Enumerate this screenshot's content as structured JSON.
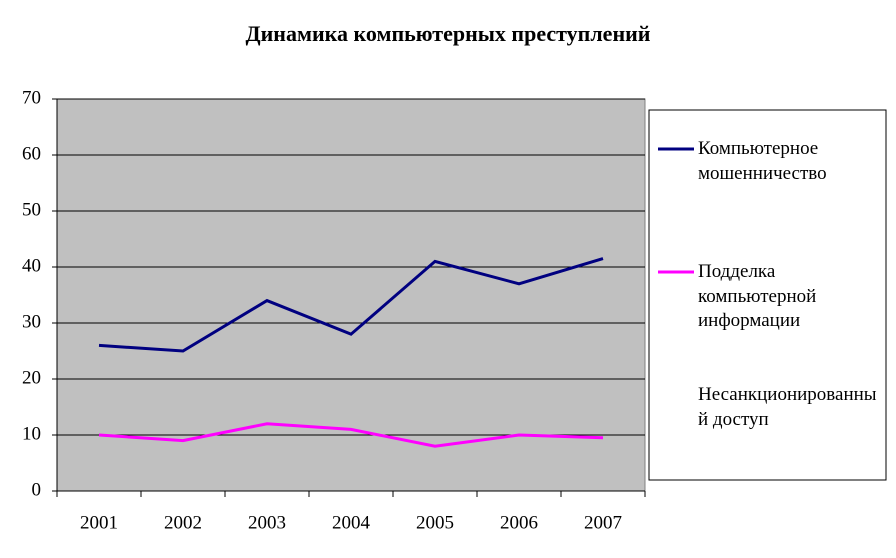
{
  "chart_data": {
    "type": "line",
    "title": "Динамика компьютерных преступлений",
    "categories": [
      "2001",
      "2002",
      "2003",
      "2004",
      "2005",
      "2006",
      "2007"
    ],
    "series": [
      {
        "name": "Компьютерное мошенничество",
        "color": "#000080",
        "values": [
          26,
          25,
          34,
          28,
          41,
          37,
          41.5
        ]
      },
      {
        "name": "Подделка компьютерной информации",
        "color": "#ff00ff",
        "values": [
          10,
          9,
          12,
          11,
          8,
          10,
          9.5
        ]
      },
      {
        "name": "Несанкционированный доступ",
        "color": "#ffffff",
        "values": [
          null,
          null,
          null,
          null,
          null,
          null,
          null
        ]
      }
    ],
    "ylim": [
      0,
      70
    ],
    "yticks": [
      0,
      10,
      20,
      30,
      40,
      50,
      60,
      70
    ],
    "grid": true,
    "legend": "right"
  }
}
